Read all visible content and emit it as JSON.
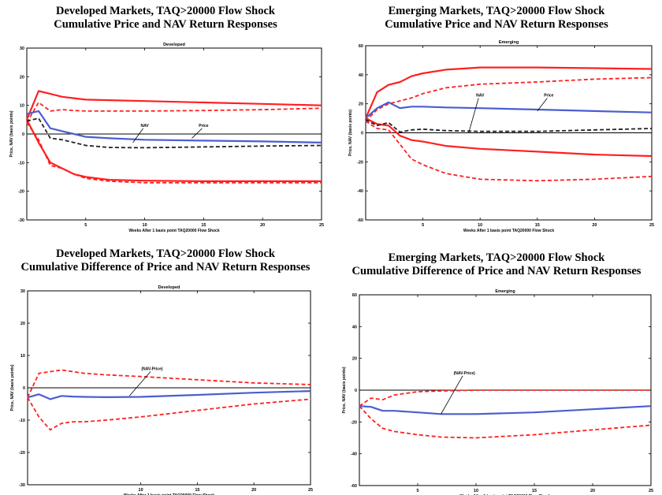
{
  "panels": [
    {
      "title_line1": "Developed Markets, TAQ>20000 Flow Shock",
      "title_line2": "Cumulative Price and NAV Return Responses"
    },
    {
      "title_line1": "Emerging Markets, TAQ>20000 Flow Shock",
      "title_line2": "Cumulative Price and NAV Return Responses"
    },
    {
      "title_line1": "Developed Markets, TAQ>20000 Flow Shock",
      "title_line2": "Cumulative Difference of Price and NAV Return Responses"
    },
    {
      "title_line1": "Emerging Markets, TAQ>20000 Flow Shock",
      "title_line2": "Cumulative Difference of Price and NAV Return Responses"
    }
  ],
  "chart_data": [
    {
      "type": "line",
      "title": "Developed",
      "xlabel": "Weeks After 1 basis point TAQ20000 Flow Shock",
      "ylabel": "Price, NAV (basis points)",
      "xlim": [
        0,
        25
      ],
      "ylim": [
        -30,
        30
      ],
      "xticks": [
        5,
        10,
        15,
        20,
        25
      ],
      "yticks": [
        -30,
        -20,
        -10,
        0,
        10,
        20,
        30
      ],
      "zero_line": true,
      "annotations": [
        {
          "text": "NAV",
          "x": 10,
          "y": 2.5,
          "target": [
            9,
            -3
          ]
        },
        {
          "text": "Price",
          "x": 15,
          "y": 2.5,
          "target": [
            14,
            -1.5
          ]
        }
      ],
      "series": [
        {
          "role": "price-band-upper",
          "color": "#ff2020",
          "dash": false,
          "x": [
            0,
            1,
            2,
            3,
            4,
            5,
            7,
            10,
            15,
            20,
            25
          ],
          "values": [
            5,
            15,
            14,
            13,
            12.5,
            12,
            11.8,
            11.5,
            11,
            10.5,
            10
          ]
        },
        {
          "role": "price-band-lower",
          "color": "#ff2020",
          "dash": false,
          "x": [
            0,
            1,
            2,
            3,
            4,
            5,
            7,
            10,
            15,
            20,
            25
          ],
          "values": [
            5,
            -3,
            -10,
            -12,
            -14,
            -15,
            -16,
            -16.3,
            -16.5,
            -16.5,
            -16.5
          ]
        },
        {
          "role": "nav-band-upper",
          "color": "#ff2020",
          "dash": true,
          "x": [
            0,
            1,
            2,
            3,
            4,
            5,
            7,
            10,
            15,
            20,
            25
          ],
          "values": [
            4,
            11,
            8,
            8.5,
            8.2,
            8,
            8,
            8,
            8.2,
            8.5,
            9
          ]
        },
        {
          "role": "nav-band-lower",
          "color": "#ff2020",
          "dash": true,
          "x": [
            0,
            1,
            2,
            3,
            4,
            5,
            7,
            10,
            15,
            20,
            25
          ],
          "values": [
            4,
            -2,
            -11,
            -12,
            -14,
            -15.5,
            -16.5,
            -17,
            -17,
            -17,
            -17
          ]
        },
        {
          "name": "Price",
          "color": "#4a5ed0",
          "dash": false,
          "x": [
            0,
            1,
            2,
            3,
            4,
            5,
            7,
            10,
            15,
            20,
            25
          ],
          "values": [
            7,
            8,
            2,
            1,
            0,
            -1,
            -1.5,
            -2,
            -2.3,
            -2.6,
            -3
          ]
        },
        {
          "name": "NAV",
          "color": "#222222",
          "dash": true,
          "x": [
            0,
            1,
            2,
            3,
            4,
            5,
            7,
            10,
            15,
            20,
            25
          ],
          "values": [
            4.5,
            5.5,
            -1.5,
            -2,
            -3,
            -4,
            -4.7,
            -4.8,
            -4.5,
            -4.2,
            -4
          ]
        }
      ]
    },
    {
      "type": "line",
      "title": "Emerging",
      "xlabel": "Weeks After 1 basis point TAQ20000 Flow Shock",
      "ylabel": "Price, NAV (basis points)",
      "xlim": [
        0,
        25
      ],
      "ylim": [
        -60,
        60
      ],
      "xticks": [
        5,
        10,
        15,
        20,
        25
      ],
      "yticks": [
        -60,
        -40,
        -20,
        0,
        20,
        40,
        60
      ],
      "zero_line": true,
      "annotations": [
        {
          "text": "NAV",
          "x": 10,
          "y": 25,
          "target": [
            9,
            0
          ]
        },
        {
          "text": "Price",
          "x": 16,
          "y": 25,
          "target": [
            15,
            15
          ]
        }
      ],
      "series": [
        {
          "role": "price-band-upper",
          "color": "#ff2020",
          "dash": false,
          "x": [
            0,
            1,
            2,
            3,
            4,
            5,
            7,
            10,
            15,
            20,
            25
          ],
          "values": [
            10,
            28,
            33,
            35,
            39,
            41,
            43.5,
            45,
            45,
            44.5,
            44
          ]
        },
        {
          "role": "price-band-lower",
          "color": "#ff2020",
          "dash": false,
          "x": [
            0,
            1,
            2,
            3,
            4,
            5,
            7,
            10,
            15,
            20,
            25
          ],
          "values": [
            10,
            6,
            5,
            -2,
            -5,
            -6,
            -9,
            -11,
            -13,
            -15,
            -16
          ]
        },
        {
          "role": "nav-band-upper",
          "color": "#ff2020",
          "dash": true,
          "x": [
            0,
            1,
            2,
            3,
            4,
            5,
            7,
            10,
            15,
            20,
            25
          ],
          "values": [
            8,
            16,
            20,
            22,
            24,
            27,
            31,
            33.5,
            35,
            37,
            38
          ]
        },
        {
          "role": "nav-band-lower",
          "color": "#ff2020",
          "dash": true,
          "x": [
            0,
            1,
            2,
            3,
            4,
            5,
            7,
            10,
            15,
            20,
            25
          ],
          "values": [
            8,
            3,
            2,
            -8,
            -18,
            -22,
            -28,
            -32,
            -33,
            -32,
            -30
          ]
        },
        {
          "name": "Price",
          "color": "#4a5ed0",
          "dash": false,
          "x": [
            0,
            1,
            2,
            3,
            4,
            5,
            7,
            10,
            15,
            20,
            25
          ],
          "values": [
            10,
            17,
            21,
            17,
            18,
            18,
            17.5,
            17,
            16,
            15,
            14
          ]
        },
        {
          "name": "NAV",
          "color": "#222222",
          "dash": true,
          "x": [
            0,
            1,
            2,
            3,
            4,
            5,
            7,
            10,
            15,
            20,
            25
          ],
          "values": [
            9,
            5,
            7,
            0.5,
            2,
            2.5,
            1.5,
            1,
            1,
            2,
            3
          ]
        }
      ]
    },
    {
      "type": "line",
      "title": "Developed",
      "xlabel": "Weeks After 1 basis point TAQ20000 Flow Shock",
      "ylabel": "Price, NAV (basis points)",
      "xlim": [
        0,
        25
      ],
      "ylim": [
        -30,
        30
      ],
      "xticks": [
        10,
        15,
        20,
        25
      ],
      "yticks": [
        -30,
        -20,
        -10,
        0,
        10,
        20,
        30
      ],
      "zero_line": true,
      "annotations": [
        {
          "text": "(NAV-Price)",
          "x": 11,
          "y": 5.5,
          "target": [
            9,
            -2.5
          ]
        }
      ],
      "series": [
        {
          "role": "band-upper",
          "color": "#ff2020",
          "dash": true,
          "x": [
            0,
            1,
            2,
            3,
            4,
            5,
            7,
            10,
            15,
            20,
            25
          ],
          "values": [
            -3,
            4.5,
            5,
            5.5,
            5,
            4.5,
            4,
            3.5,
            2.5,
            1.5,
            1
          ]
        },
        {
          "role": "band-lower",
          "color": "#ff2020",
          "dash": true,
          "x": [
            0,
            1,
            2,
            3,
            4,
            5,
            7,
            10,
            15,
            20,
            25
          ],
          "values": [
            -3,
            -9,
            -13,
            -11,
            -10.5,
            -10.5,
            -10,
            -9,
            -7,
            -5,
            -3.5
          ]
        },
        {
          "name": "(NAV-Price)",
          "color": "#4a5ed0",
          "dash": false,
          "x": [
            0,
            1,
            2,
            3,
            4,
            5,
            7,
            10,
            15,
            20,
            25
          ],
          "values": [
            -3,
            -2,
            -3.5,
            -2.5,
            -2.7,
            -2.8,
            -2.9,
            -2.8,
            -2.2,
            -1.5,
            -1
          ]
        }
      ]
    },
    {
      "type": "line",
      "title": "Emerging",
      "xlabel": "Weeks After 1 basis point TAQ20000 Flow Shock",
      "ylabel": "Price, NAV (basis points)",
      "xlim": [
        0,
        25
      ],
      "ylim": [
        -60,
        60
      ],
      "xticks": [
        5,
        10,
        15,
        20,
        25
      ],
      "yticks": [
        -60,
        -40,
        -20,
        0,
        20,
        40,
        60
      ],
      "zero_line": true,
      "annotations": [
        {
          "text": "(NAV-Price)",
          "x": 9,
          "y": 10,
          "target": [
            7,
            -15
          ]
        }
      ],
      "series": [
        {
          "role": "band-upper",
          "color": "#ff2020",
          "dash": true,
          "x": [
            0,
            1,
            2,
            3,
            4,
            5,
            7,
            10,
            15,
            20,
            25
          ],
          "values": [
            -10,
            -5,
            -6,
            -3,
            -2,
            -1,
            -0.5,
            0,
            0,
            0,
            0
          ]
        },
        {
          "role": "band-lower",
          "color": "#ff2020",
          "dash": true,
          "x": [
            0,
            1,
            2,
            3,
            4,
            5,
            7,
            10,
            15,
            20,
            25
          ],
          "values": [
            -10,
            -18,
            -24,
            -26,
            -27,
            -28,
            -29.5,
            -30,
            -28,
            -25,
            -22
          ]
        },
        {
          "name": "(NAV-Price)",
          "color": "#4a5ed0",
          "dash": false,
          "x": [
            0,
            1,
            2,
            3,
            4,
            5,
            7,
            10,
            15,
            20,
            25
          ],
          "values": [
            -10,
            -10.5,
            -13,
            -13,
            -13.5,
            -14,
            -15,
            -15,
            -14,
            -12,
            -10
          ]
        }
      ]
    }
  ]
}
